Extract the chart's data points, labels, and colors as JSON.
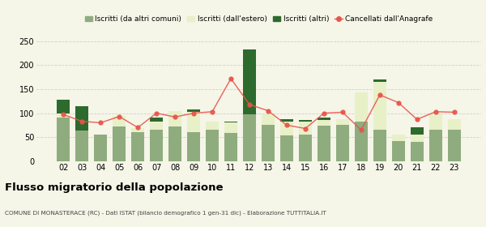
{
  "years": [
    "02",
    "03",
    "04",
    "05",
    "06",
    "07",
    "08",
    "09",
    "10",
    "11",
    "12",
    "13",
    "14",
    "15",
    "16",
    "17",
    "18",
    "19",
    "20",
    "21",
    "22",
    "23"
  ],
  "iscritti_altri_comuni": [
    90,
    63,
    55,
    72,
    60,
    65,
    72,
    60,
    65,
    58,
    97,
    75,
    53,
    55,
    74,
    75,
    83,
    65,
    42,
    40,
    65,
    65
  ],
  "iscritti_estero": [
    10,
    0,
    0,
    23,
    9,
    18,
    32,
    43,
    18,
    22,
    0,
    22,
    30,
    27,
    12,
    12,
    60,
    100,
    13,
    15,
    33,
    22
  ],
  "iscritti_altri": [
    28,
    52,
    0,
    0,
    0,
    7,
    0,
    5,
    0,
    2,
    135,
    0,
    5,
    3,
    5,
    0,
    0,
    5,
    0,
    15,
    0,
    0
  ],
  "cancellati": [
    97,
    83,
    80,
    93,
    70,
    100,
    92,
    100,
    103,
    172,
    118,
    105,
    75,
    68,
    100,
    102,
    65,
    138,
    122,
    87,
    103,
    102
  ],
  "color_altri_comuni": "#8fac7e",
  "color_estero": "#e8f0c8",
  "color_altri": "#2d6a2d",
  "color_cancellati": "#e8534a",
  "title": "Flusso migratorio della popolazione",
  "subtitle": "COMUNE DI MONASTERACE (RC) - Dati ISTAT (bilancio demografico 1 gen-31 dic) - Elaborazione TUTTITALIA.IT",
  "legend_labels": [
    "Iscritti (da altri comuni)",
    "Iscritti (dall'estero)",
    "Iscritti (altri)",
    "Cancellati dall'Anagrafe"
  ],
  "ylim": [
    0,
    260
  ],
  "yticks": [
    0,
    50,
    100,
    150,
    200,
    250
  ],
  "background_color": "#f5f5e8",
  "grid_color": "#d0d0d0"
}
